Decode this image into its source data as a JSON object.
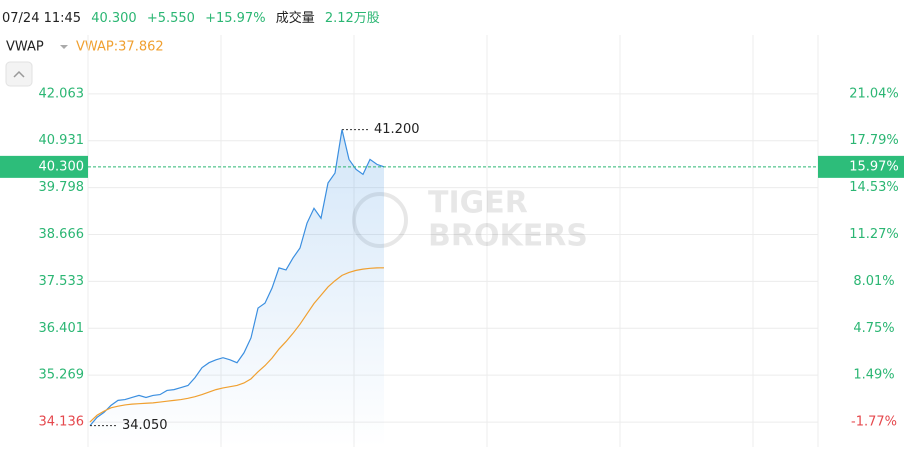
{
  "header": {
    "time": "07/24 11:45",
    "price": "40.300",
    "change": "+5.550",
    "change_pct": "+15.97%",
    "volume_label": "成交量",
    "volume": "2.12万股",
    "indicator": "VWAP",
    "indicator_value": "VWAP:37.862"
  },
  "watermark": [
    "TIGER",
    "BROKERS"
  ],
  "chart_data": {
    "type": "line",
    "series": [
      {
        "name": "Price",
        "color": "#3b8fe0",
        "values": [
          34.05,
          34.25,
          34.37,
          34.54,
          34.66,
          34.68,
          34.73,
          34.78,
          34.73,
          34.78,
          34.8,
          34.9,
          34.92,
          34.97,
          35.02,
          35.21,
          35.45,
          35.57,
          35.64,
          35.69,
          35.64,
          35.57,
          35.81,
          36.17,
          36.89,
          37.01,
          37.37,
          37.86,
          37.81,
          38.1,
          38.34,
          38.94,
          39.3,
          39.06,
          39.91,
          40.15,
          41.2,
          40.48,
          40.24,
          40.12,
          40.48,
          40.36,
          40.3
        ]
      },
      {
        "name": "VWAP",
        "color": "#f0a030",
        "values": [
          34.14,
          34.3,
          34.4,
          34.48,
          34.52,
          34.55,
          34.57,
          34.58,
          34.59,
          34.6,
          34.62,
          34.64,
          34.66,
          34.68,
          34.71,
          34.75,
          34.8,
          34.86,
          34.92,
          34.96,
          34.99,
          35.02,
          35.08,
          35.18,
          35.35,
          35.5,
          35.68,
          35.9,
          36.08,
          36.28,
          36.5,
          36.75,
          37.0,
          37.2,
          37.4,
          37.55,
          37.68,
          37.75,
          37.8,
          37.83,
          37.85,
          37.86,
          37.862
        ]
      }
    ],
    "ylim": [
      33.534,
      43.485
    ],
    "yticks": [
      42.063,
      40.931,
      39.798,
      38.666,
      37.533,
      36.401,
      35.269,
      34.136
    ],
    "y2lim": [
      -3.5,
      25.14
    ],
    "y2ticks": [
      {
        "value": 21.04,
        "label": "21.04%"
      },
      {
        "value": 17.79,
        "label": "17.79%"
      },
      {
        "value": 14.53,
        "label": "14.53%"
      },
      {
        "value": 11.27,
        "label": "11.27%"
      },
      {
        "value": 8.01,
        "label": "8.01%"
      },
      {
        "value": 4.75,
        "label": "4.75%"
      },
      {
        "value": 1.49,
        "label": "1.49%"
      },
      {
        "value": -1.77,
        "label": "-1.77%"
      }
    ],
    "current": {
      "value": 40.3,
      "label": "40.300",
      "pct": {
        "value": 15.97,
        "label": "15.97%"
      }
    },
    "max_marker": {
      "value": 41.2,
      "label": "41.200"
    },
    "min_marker": {
      "value": 34.05,
      "label": "34.050"
    },
    "grid": true
  }
}
